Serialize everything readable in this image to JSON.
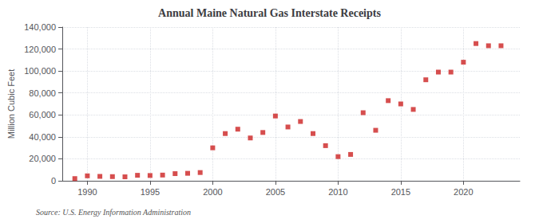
{
  "chart_data": {
    "type": "scatter",
    "title": "Annual Maine Natural Gas Interstate Receipts",
    "ylabel": "Million Cubic Feet",
    "annotations": [
      "Source: U.S. Energy Information Administration"
    ],
    "x": [
      1989,
      1990,
      1991,
      1992,
      1993,
      1994,
      1995,
      1996,
      1997,
      1998,
      1999,
      2000,
      2001,
      2002,
      2003,
      2004,
      2005,
      2006,
      2007,
      2008,
      2009,
      2010,
      2011,
      2012,
      2013,
      2014,
      2015,
      2016,
      2017,
      2018,
      2019,
      2020,
      2021,
      2022,
      2023
    ],
    "values": [
      2000,
      4500,
      4000,
      3800,
      3600,
      5000,
      4800,
      5200,
      6500,
      6800,
      7500,
      30000,
      43000,
      47000,
      39000,
      44000,
      59000,
      49000,
      54000,
      43000,
      32000,
      22000,
      24000,
      62000,
      46000,
      73000,
      70000,
      65000,
      92000,
      99000,
      99000,
      108000,
      125000,
      123000,
      123000
    ],
    "color": "#cc2222",
    "marker": "square",
    "xlim": [
      1988.0,
      2024.5
    ],
    "xticks": [
      1990,
      1995,
      2000,
      2005,
      2010,
      2015,
      2020
    ],
    "ylim": [
      0,
      140000
    ],
    "yticks": [
      0,
      {
        "value": 20000,
        "label": "20,000"
      },
      {
        "value": 40000,
        "label": "40,000"
      },
      {
        "value": 60000,
        "label": "60,000"
      },
      {
        "value": 80000,
        "label": "80,000"
      },
      {
        "value": 100000,
        "label": "100,000"
      },
      {
        "value": 120000,
        "label": "120,000"
      },
      {
        "value": 140000,
        "label": "140,000"
      }
    ],
    "grid": true
  }
}
